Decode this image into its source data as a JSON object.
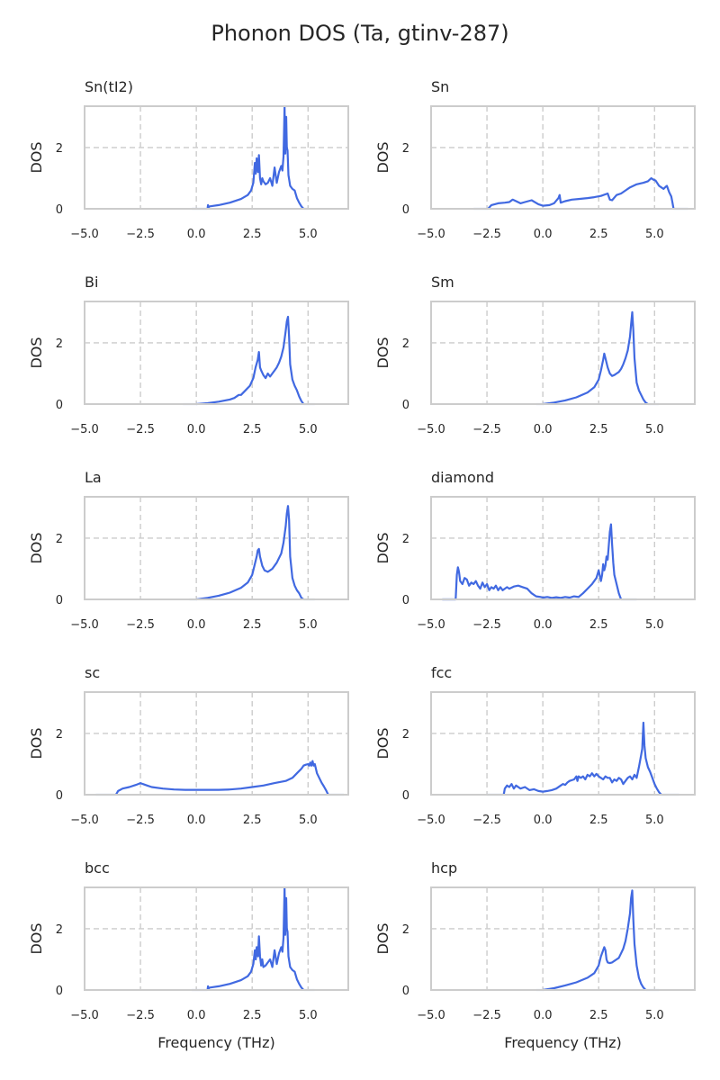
{
  "figure": {
    "title": "Phonon DOS (Ta, gtinv-287)"
  },
  "chart_data": [
    {
      "type": "line",
      "title": "Sn(tI2)",
      "xlabel": "",
      "ylabel": "DOS",
      "xlim": [
        -5.0,
        6.8
      ],
      "ylim": [
        0,
        3.35
      ],
      "xticks": [
        "−5.0",
        "−2.5",
        "0.0",
        "2.5",
        "5.0"
      ],
      "yticks": [
        "0",
        "2"
      ],
      "grid": true,
      "legend": "none",
      "x": [
        0.5,
        0.52,
        0.55,
        0.6,
        1.0,
        1.5,
        2.0,
        2.3,
        2.45,
        2.55,
        2.62,
        2.66,
        2.7,
        2.76,
        2.8,
        2.85,
        2.9,
        2.95,
        3.0,
        3.1,
        3.2,
        3.3,
        3.4,
        3.5,
        3.6,
        3.7,
        3.8,
        3.85,
        3.9,
        3.95,
        3.98,
        4.02,
        4.05,
        4.08,
        4.12,
        4.2,
        4.3,
        4.4,
        4.5,
        4.6,
        4.7,
        4.8
      ],
      "y": [
        0.0,
        0.12,
        0.05,
        0.08,
        0.12,
        0.2,
        0.32,
        0.45,
        0.6,
        0.85,
        1.5,
        1.15,
        1.65,
        1.2,
        1.75,
        1.0,
        0.8,
        1.0,
        0.9,
        0.8,
        0.85,
        1.0,
        0.75,
        1.35,
        0.85,
        1.2,
        1.4,
        1.25,
        1.7,
        3.35,
        1.8,
        3.0,
        2.0,
        1.9,
        1.1,
        0.75,
        0.65,
        0.6,
        0.35,
        0.2,
        0.08,
        0.0
      ],
      "x_faint": [
        -0.2,
        0.5,
        4.8,
        5.0
      ],
      "y_faint": [
        0,
        0,
        0,
        0
      ]
    },
    {
      "type": "line",
      "title": "Sn",
      "xlabel": "",
      "ylabel": "DOS",
      "xlim": [
        -5.0,
        6.8
      ],
      "ylim": [
        0,
        3.35
      ],
      "xticks": [
        "−5.0",
        "−2.5",
        "0.0",
        "2.5",
        "5.0"
      ],
      "yticks": [
        "0",
        "2"
      ],
      "grid": true,
      "legend": "none",
      "x": [
        -2.45,
        -2.3,
        -2.0,
        -1.7,
        -1.5,
        -1.35,
        -1.2,
        -1.0,
        -0.8,
        -0.5,
        -0.2,
        0.0,
        0.3,
        0.5,
        0.7,
        0.75,
        0.8,
        1.0,
        1.3,
        1.6,
        2.0,
        2.3,
        2.6,
        2.9,
        3.0,
        3.1,
        3.3,
        3.5,
        3.7,
        3.9,
        4.2,
        4.5,
        4.7,
        4.85,
        4.95,
        5.05,
        5.2,
        5.3,
        5.4,
        5.5,
        5.55,
        5.65,
        5.75,
        5.8,
        5.85
      ],
      "y": [
        0.0,
        0.12,
        0.18,
        0.2,
        0.22,
        0.3,
        0.25,
        0.18,
        0.22,
        0.28,
        0.15,
        0.1,
        0.12,
        0.18,
        0.35,
        0.45,
        0.2,
        0.25,
        0.3,
        0.32,
        0.35,
        0.38,
        0.42,
        0.5,
        0.3,
        0.28,
        0.45,
        0.5,
        0.6,
        0.7,
        0.8,
        0.85,
        0.9,
        1.0,
        0.95,
        0.92,
        0.75,
        0.7,
        0.65,
        0.72,
        0.75,
        0.55,
        0.4,
        0.2,
        0.0
      ],
      "x_faint": [
        -3.1,
        -2.45,
        5.85,
        6.5
      ],
      "y_faint": [
        0,
        0,
        0,
        0
      ]
    },
    {
      "type": "line",
      "title": "Bi",
      "xlabel": "",
      "ylabel": "DOS",
      "xlim": [
        -5.0,
        6.8
      ],
      "ylim": [
        0,
        3.35
      ],
      "xticks": [
        "−5.0",
        "−2.5",
        "0.0",
        "2.5",
        "5.0"
      ],
      "yticks": [
        "0",
        "2"
      ],
      "grid": true,
      "legend": "none",
      "x": [
        0.0,
        0.5,
        1.0,
        1.5,
        1.7,
        1.9,
        2.0,
        2.2,
        2.4,
        2.55,
        2.65,
        2.75,
        2.8,
        2.85,
        2.9,
        3.0,
        3.1,
        3.2,
        3.3,
        3.4,
        3.5,
        3.6,
        3.7,
        3.8,
        3.9,
        4.0,
        4.05,
        4.1,
        4.15,
        4.2,
        4.3,
        4.4,
        4.5,
        4.6,
        4.7,
        4.8
      ],
      "y": [
        0.0,
        0.03,
        0.08,
        0.15,
        0.2,
        0.3,
        0.3,
        0.45,
        0.6,
        0.85,
        1.2,
        1.45,
        1.7,
        1.2,
        1.1,
        0.95,
        0.85,
        1.0,
        0.9,
        1.0,
        1.1,
        1.2,
        1.35,
        1.55,
        1.85,
        2.4,
        2.7,
        2.85,
        2.2,
        1.3,
        0.8,
        0.6,
        0.45,
        0.25,
        0.1,
        0.0
      ],
      "x_faint": [
        -0.6,
        0.0,
        4.8,
        5.3
      ],
      "y_faint": [
        0,
        0,
        0,
        0
      ]
    },
    {
      "type": "line",
      "title": "Sm",
      "xlabel": "",
      "ylabel": "DOS",
      "xlim": [
        -5.0,
        6.8
      ],
      "ylim": [
        0,
        3.35
      ],
      "xticks": [
        "−5.0",
        "−2.5",
        "0.0",
        "2.5",
        "5.0"
      ],
      "yticks": [
        "0",
        "2"
      ],
      "grid": true,
      "legend": "none",
      "x": [
        0.0,
        0.5,
        1.0,
        1.5,
        2.0,
        2.3,
        2.5,
        2.6,
        2.7,
        2.75,
        2.8,
        2.9,
        3.0,
        3.1,
        3.2,
        3.3,
        3.4,
        3.5,
        3.6,
        3.7,
        3.8,
        3.9,
        3.95,
        4.0,
        4.05,
        4.1,
        4.2,
        4.3,
        4.4,
        4.5,
        4.6,
        4.7
      ],
      "y": [
        0.0,
        0.05,
        0.12,
        0.22,
        0.38,
        0.55,
        0.8,
        1.1,
        1.45,
        1.65,
        1.5,
        1.2,
        1.0,
        0.92,
        0.95,
        1.0,
        1.05,
        1.15,
        1.3,
        1.5,
        1.75,
        2.2,
        2.6,
        3.0,
        2.4,
        1.5,
        0.7,
        0.45,
        0.3,
        0.15,
        0.05,
        0.0
      ],
      "x_faint": [
        -0.3,
        0.0,
        4.7,
        5.2
      ],
      "y_faint": [
        0,
        0,
        0,
        0
      ]
    },
    {
      "type": "line",
      "title": "La",
      "xlabel": "",
      "ylabel": "DOS",
      "xlim": [
        -5.0,
        6.8
      ],
      "ylim": [
        0,
        3.35
      ],
      "xticks": [
        "−5.0",
        "−2.5",
        "0.0",
        "2.5",
        "5.0"
      ],
      "yticks": [
        "0",
        "2"
      ],
      "grid": true,
      "legend": "none",
      "x": [
        0.0,
        0.5,
        1.0,
        1.5,
        2.0,
        2.3,
        2.5,
        2.6,
        2.7,
        2.75,
        2.8,
        2.85,
        2.95,
        3.05,
        3.2,
        3.4,
        3.6,
        3.8,
        3.9,
        4.0,
        4.05,
        4.1,
        4.15,
        4.2,
        4.3,
        4.4,
        4.5,
        4.6,
        4.7,
        4.8
      ],
      "y": [
        0.0,
        0.05,
        0.12,
        0.22,
        0.38,
        0.55,
        0.8,
        1.1,
        1.4,
        1.6,
        1.65,
        1.4,
        1.1,
        0.95,
        0.9,
        1.0,
        1.2,
        1.5,
        1.85,
        2.4,
        2.8,
        3.05,
        2.6,
        1.4,
        0.7,
        0.45,
        0.3,
        0.2,
        0.05,
        0.0
      ],
      "x_faint": [
        -0.3,
        0.0,
        4.8,
        5.3
      ],
      "y_faint": [
        0,
        0,
        0,
        0
      ]
    },
    {
      "type": "line",
      "title": "diamond",
      "xlabel": "",
      "ylabel": "DOS",
      "xlim": [
        -5.0,
        6.8
      ],
      "ylim": [
        0,
        3.35
      ],
      "xticks": [
        "−5.0",
        "−2.5",
        "0.0",
        "2.5",
        "5.0"
      ],
      "yticks": [
        "0",
        "2"
      ],
      "grid": true,
      "legend": "none",
      "x": [
        -4.5,
        -3.9,
        -3.85,
        -3.8,
        -3.75,
        -3.7,
        -3.6,
        -3.5,
        -3.4,
        -3.3,
        -3.2,
        -3.1,
        -3.0,
        -2.9,
        -2.8,
        -2.7,
        -2.6,
        -2.5,
        -2.4,
        -2.3,
        -2.2,
        -2.1,
        -2.0,
        -1.9,
        -1.8,
        -1.7,
        -1.6,
        -1.5,
        -1.3,
        -1.1,
        -0.9,
        -0.7,
        -0.5,
        -0.3,
        -0.1,
        0.0,
        0.2,
        0.4,
        0.6,
        0.8,
        1.0,
        1.2,
        1.4,
        1.6,
        1.8,
        2.0,
        2.2,
        2.4,
        2.5,
        2.6,
        2.65,
        2.7,
        2.75,
        2.8,
        2.85,
        2.9,
        3.0,
        3.05,
        3.1,
        3.15,
        3.2,
        3.3,
        3.4,
        3.5
      ],
      "y": [
        0.0,
        0.0,
        0.8,
        1.05,
        0.9,
        0.6,
        0.5,
        0.7,
        0.65,
        0.45,
        0.55,
        0.5,
        0.6,
        0.45,
        0.35,
        0.55,
        0.4,
        0.5,
        0.3,
        0.4,
        0.35,
        0.45,
        0.3,
        0.4,
        0.3,
        0.35,
        0.4,
        0.35,
        0.42,
        0.45,
        0.4,
        0.35,
        0.2,
        0.1,
        0.08,
        0.06,
        0.08,
        0.05,
        0.07,
        0.05,
        0.08,
        0.06,
        0.1,
        0.08,
        0.2,
        0.35,
        0.5,
        0.7,
        0.95,
        0.6,
        0.8,
        1.15,
        0.95,
        1.1,
        1.4,
        1.3,
        2.2,
        2.45,
        1.8,
        1.2,
        0.8,
        0.5,
        0.2,
        0.0
      ],
      "x_faint": [
        -4.5,
        -3.9,
        3.5,
        4.2
      ],
      "y_faint": [
        0,
        0,
        0,
        0
      ]
    },
    {
      "type": "line",
      "title": "sc",
      "xlabel": "",
      "ylabel": "DOS",
      "xlim": [
        -5.0,
        6.8
      ],
      "ylim": [
        0,
        3.35
      ],
      "xticks": [
        "−5.0",
        "−2.5",
        "0.0",
        "2.5",
        "5.0"
      ],
      "yticks": [
        "0",
        "2"
      ],
      "grid": true,
      "legend": "none",
      "x": [
        -3.6,
        -3.5,
        -3.3,
        -3.0,
        -2.7,
        -2.5,
        -2.4,
        -2.2,
        -2.0,
        -1.5,
        -1.0,
        -0.5,
        0.0,
        0.5,
        1.0,
        1.5,
        2.0,
        2.5,
        3.0,
        3.5,
        4.0,
        4.3,
        4.5,
        4.7,
        4.8,
        4.9,
        5.0,
        5.05,
        5.1,
        5.15,
        5.2,
        5.25,
        5.3,
        5.4,
        5.5,
        5.6,
        5.7,
        5.8,
        5.9
      ],
      "y": [
        0.0,
        0.12,
        0.2,
        0.25,
        0.32,
        0.38,
        0.35,
        0.3,
        0.25,
        0.2,
        0.17,
        0.16,
        0.16,
        0.16,
        0.16,
        0.17,
        0.2,
        0.25,
        0.3,
        0.38,
        0.45,
        0.55,
        0.7,
        0.85,
        0.95,
        0.98,
        1.0,
        0.95,
        1.05,
        0.95,
        1.1,
        0.95,
        1.0,
        0.7,
        0.55,
        0.4,
        0.28,
        0.15,
        0.0
      ],
      "x_faint": [
        -4.5,
        -3.6,
        5.9,
        6.6
      ],
      "y_faint": [
        0,
        0,
        0,
        0
      ]
    },
    {
      "type": "line",
      "title": "fcc",
      "xlabel": "",
      "ylabel": "DOS",
      "xlim": [
        -5.0,
        6.8
      ],
      "ylim": [
        0,
        3.35
      ],
      "xticks": [
        "−5.0",
        "−2.5",
        "0.0",
        "2.5",
        "5.0"
      ],
      "yticks": [
        "0",
        "2"
      ],
      "grid": true,
      "legend": "none",
      "x": [
        -1.75,
        -1.7,
        -1.6,
        -1.5,
        -1.4,
        -1.3,
        -1.2,
        -1.0,
        -0.8,
        -0.6,
        -0.4,
        -0.2,
        0.0,
        0.2,
        0.4,
        0.6,
        0.8,
        0.9,
        1.0,
        1.1,
        1.2,
        1.4,
        1.5,
        1.55,
        1.6,
        1.7,
        1.8,
        1.9,
        2.0,
        2.1,
        2.2,
        2.3,
        2.4,
        2.5,
        2.6,
        2.7,
        2.8,
        2.9,
        3.0,
        3.1,
        3.2,
        3.3,
        3.4,
        3.5,
        3.6,
        3.7,
        3.8,
        3.9,
        4.0,
        4.1,
        4.2,
        4.3,
        4.4,
        4.45,
        4.5,
        4.55,
        4.6,
        4.7,
        4.8,
        4.9,
        5.0,
        5.1,
        5.2,
        5.3
      ],
      "y": [
        0.0,
        0.2,
        0.3,
        0.25,
        0.35,
        0.2,
        0.3,
        0.2,
        0.25,
        0.15,
        0.18,
        0.12,
        0.1,
        0.12,
        0.15,
        0.2,
        0.3,
        0.35,
        0.32,
        0.4,
        0.45,
        0.5,
        0.6,
        0.45,
        0.6,
        0.55,
        0.6,
        0.5,
        0.65,
        0.6,
        0.7,
        0.6,
        0.68,
        0.6,
        0.55,
        0.5,
        0.6,
        0.55,
        0.55,
        0.4,
        0.5,
        0.45,
        0.55,
        0.5,
        0.35,
        0.45,
        0.55,
        0.6,
        0.5,
        0.65,
        0.55,
        0.9,
        1.3,
        1.5,
        2.35,
        1.6,
        1.2,
        0.9,
        0.75,
        0.55,
        0.35,
        0.2,
        0.08,
        0.0
      ],
      "x_faint": [
        -2.5,
        -1.75,
        5.3,
        6.1
      ],
      "y_faint": [
        0,
        0,
        0,
        0
      ]
    },
    {
      "type": "line",
      "title": "bcc",
      "xlabel": "Frequency (THz)",
      "ylabel": "DOS",
      "xlim": [
        -5.0,
        6.8
      ],
      "ylim": [
        0,
        3.35
      ],
      "xticks": [
        "−5.0",
        "−2.5",
        "0.0",
        "2.5",
        "5.0"
      ],
      "yticks": [
        "0",
        "2"
      ],
      "grid": true,
      "legend": "none",
      "x": [
        0.5,
        0.52,
        0.55,
        0.6,
        1.0,
        1.5,
        2.0,
        2.3,
        2.45,
        2.55,
        2.62,
        2.66,
        2.7,
        2.76,
        2.8,
        2.85,
        2.9,
        2.95,
        3.0,
        3.1,
        3.2,
        3.3,
        3.4,
        3.5,
        3.6,
        3.7,
        3.8,
        3.85,
        3.9,
        3.95,
        3.98,
        4.02,
        4.05,
        4.08,
        4.12,
        4.2,
        4.3,
        4.4,
        4.5,
        4.6,
        4.7,
        4.8
      ],
      "y": [
        0.0,
        0.12,
        0.05,
        0.08,
        0.12,
        0.2,
        0.32,
        0.45,
        0.6,
        0.85,
        1.3,
        1.0,
        1.4,
        1.1,
        1.75,
        1.1,
        0.8,
        1.0,
        0.75,
        0.8,
        0.9,
        1.0,
        0.75,
        1.3,
        0.85,
        1.2,
        1.4,
        1.25,
        1.7,
        3.35,
        1.8,
        3.0,
        2.0,
        1.9,
        1.1,
        0.75,
        0.65,
        0.6,
        0.35,
        0.2,
        0.08,
        0.0
      ],
      "x_faint": [
        -0.2,
        0.5,
        4.8,
        5.3
      ],
      "y_faint": [
        0,
        0,
        0,
        0
      ]
    },
    {
      "type": "line",
      "title": "hcp",
      "xlabel": "Frequency (THz)",
      "ylabel": "DOS",
      "xlim": [
        -5.0,
        6.8
      ],
      "ylim": [
        0,
        3.35
      ],
      "xticks": [
        "−5.0",
        "−2.5",
        "0.0",
        "2.5",
        "5.0"
      ],
      "yticks": [
        "0",
        "2"
      ],
      "grid": true,
      "legend": "none",
      "x": [
        0.0,
        0.5,
        1.0,
        1.5,
        2.0,
        2.3,
        2.5,
        2.6,
        2.7,
        2.75,
        2.8,
        2.85,
        2.9,
        3.0,
        3.1,
        3.2,
        3.3,
        3.4,
        3.5,
        3.6,
        3.7,
        3.8,
        3.9,
        3.95,
        4.0,
        4.05,
        4.1,
        4.2,
        4.3,
        4.4,
        4.5,
        4.6
      ],
      "y": [
        0.0,
        0.06,
        0.15,
        0.25,
        0.4,
        0.55,
        0.8,
        1.1,
        1.3,
        1.4,
        1.3,
        1.0,
        0.9,
        0.88,
        0.9,
        0.95,
        1.0,
        1.05,
        1.2,
        1.35,
        1.6,
        2.0,
        2.5,
        3.0,
        3.25,
        2.3,
        1.5,
        0.8,
        0.4,
        0.2,
        0.08,
        0.0
      ],
      "x_faint": [
        -0.3,
        0.0,
        4.6,
        5.2
      ],
      "y_faint": [
        0,
        0,
        0,
        0
      ]
    }
  ]
}
